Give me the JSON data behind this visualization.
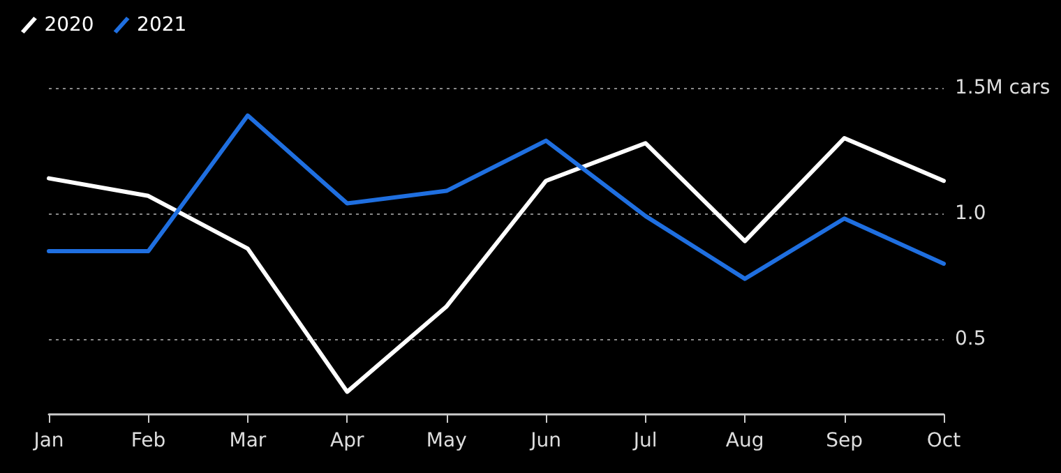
{
  "chart_data": {
    "type": "line",
    "categories": [
      "Jan",
      "Feb",
      "Mar",
      "Apr",
      "May",
      "Jun",
      "Jul",
      "Aug",
      "Sep",
      "Oct"
    ],
    "series": [
      {
        "name": "2020",
        "color": "#ffffff",
        "values": [
          1.14,
          1.07,
          0.86,
          0.29,
          0.63,
          1.13,
          1.28,
          0.89,
          1.3,
          1.13
        ]
      },
      {
        "name": "2021",
        "color": "#1f6fe0",
        "values": [
          0.85,
          0.85,
          1.39,
          1.04,
          1.09,
          1.29,
          0.99,
          0.74,
          0.98,
          0.8
        ]
      }
    ],
    "ylim": [
      0.2,
      1.5
    ],
    "yticks": [
      {
        "value": 0.5,
        "label": "0.5"
      },
      {
        "value": 1.0,
        "label": "1.0"
      },
      {
        "value": 1.5,
        "label": "1.5M cars"
      }
    ],
    "grid": "y",
    "legend": "top left",
    "marker": "none",
    "line_style": "solid"
  }
}
